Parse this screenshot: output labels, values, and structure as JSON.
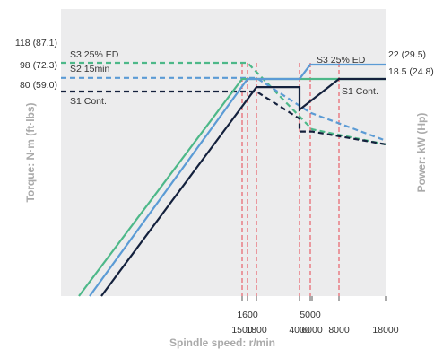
{
  "chart_data": {
    "type": "line",
    "xlabel": "Spindle speed: r/min",
    "ylabel_left": "Torque: N·m (ft·lbs)",
    "ylabel_right": "Power: kW (Hp)",
    "x_ticks_upper": [
      "1600",
      "5000"
    ],
    "x_ticks_lower": [
      "1500",
      "1800",
      "4000",
      "6000",
      "8000",
      "18000"
    ],
    "x_tick_values_upper": [
      1600,
      5000
    ],
    "x_tick_values_lower": [
      1500,
      1800,
      4000,
      6000,
      8000,
      18000
    ],
    "torque_labels": [
      "118 (87.1)",
      "98 (72.3)",
      "80 (59.0)"
    ],
    "torque_values": [
      118,
      98,
      80
    ],
    "power_labels": [
      "22 (29.5)",
      "18.5 (24.8)"
    ],
    "power_values": [
      22,
      18.5
    ],
    "annotations": {
      "torque_s3": "S3 25% ED",
      "torque_s2": "S2 15min",
      "torque_s1": "S1 Cont.",
      "power_s3": "S3 25% ED",
      "power_s1": "S1 Cont."
    },
    "series": [
      {
        "name": "S3 25% ED",
        "kind": "torque",
        "color": "#4db889",
        "dash": true,
        "x": [
          500,
          1500,
          1600,
          6000,
          18000
        ],
        "y": [
          118,
          118,
          118,
          30,
          10
        ]
      },
      {
        "name": "S2 15min",
        "kind": "torque",
        "color": "#5b9bd5",
        "dash": true,
        "x": [
          500,
          1600,
          1800,
          5000,
          18000
        ],
        "y": [
          98,
          98,
          98,
          52,
          15
        ]
      },
      {
        "name": "S1 Cont.",
        "kind": "torque",
        "color": "#14213d",
        "dash": true,
        "x": [
          500,
          1800,
          4000,
          4000,
          6000,
          18000
        ],
        "y": [
          80,
          80,
          44,
          27,
          27,
          10
        ]
      },
      {
        "name": "S3 25% ED",
        "kind": "power",
        "color": "#4db889",
        "dash": false,
        "x": [
          70,
          1500,
          18000
        ],
        "y": [
          0,
          18.5,
          18.5
        ]
      },
      {
        "name": "S3 25% ED",
        "kind": "power",
        "color": "#5b9bd5",
        "dash": false,
        "x": [
          250,
          1600,
          4000,
          5000,
          18000
        ],
        "y": [
          0,
          18.5,
          18.5,
          22,
          22
        ]
      },
      {
        "name": "S1 Cont.",
        "kind": "power",
        "color": "#14213d",
        "dash": false,
        "x": [
          500,
          1800,
          4000,
          4000,
          8000,
          18000
        ],
        "y": [
          0,
          16.5,
          16.5,
          11,
          18.5,
          18.5
        ]
      }
    ],
    "reference_lines_x": [
      1500,
      1600,
      1800,
      4000,
      5000,
      8000
    ],
    "reference_line_color": "#e8434f",
    "background_color": "#ececed",
    "grid": false
  }
}
